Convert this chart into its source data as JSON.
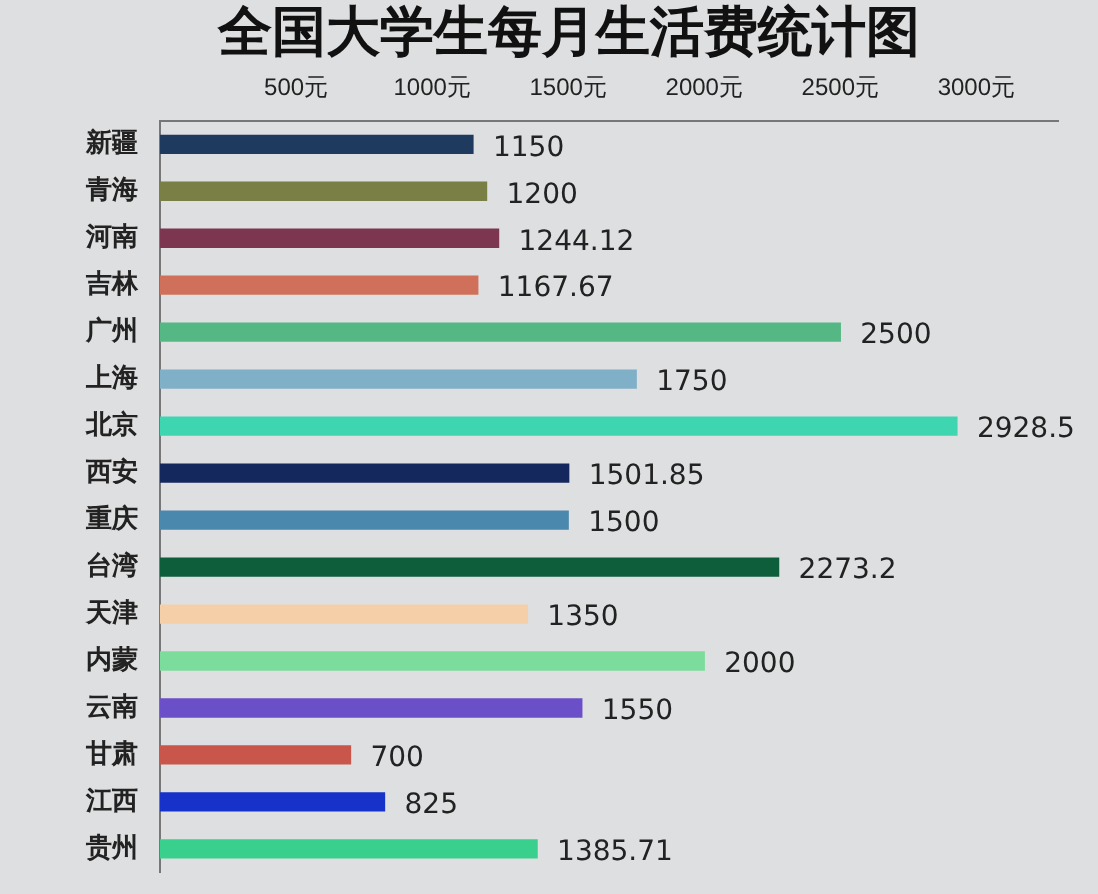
{
  "chart_data": {
    "type": "bar",
    "orientation": "horizontal",
    "title": "全国大学生每月生活费统计图",
    "categories": [
      "新疆",
      "青海",
      "河南",
      "吉林",
      "广州",
      "上海",
      "北京",
      "西安",
      "重庆",
      "台湾",
      "天津",
      "内蒙",
      "云南",
      "甘肃",
      "江西",
      "贵州"
    ],
    "values": [
      1150,
      1200,
      1244.12,
      1167.67,
      2500,
      1750,
      2928.5,
      1501.85,
      1500,
      2273.2,
      1350,
      2000,
      1550,
      700,
      825,
      1385.71
    ],
    "colors": [
      "#1f3a5f",
      "#7a7f45",
      "#7d3650",
      "#d0705a",
      "#55b884",
      "#7fb0c8",
      "#3dd6b0",
      "#14285e",
      "#4a88ad",
      "#0e5e3c",
      "#f5cfa8",
      "#7cdc9c",
      "#6a4fc8",
      "#c8564a",
      "#1632c8",
      "#38d08c"
    ],
    "xlim": [
      0,
      3300
    ],
    "xticks": [
      {
        "value": 500,
        "label": "500元"
      },
      {
        "value": 1000,
        "label": "1000元"
      },
      {
        "value": 1500,
        "label": "1500元"
      },
      {
        "value": 2000,
        "label": "2000元"
      },
      {
        "value": 2500,
        "label": "2500元"
      },
      {
        "value": 3000,
        "label": "3000元"
      }
    ],
    "data_labels": true,
    "grid": false,
    "legend": false
  }
}
